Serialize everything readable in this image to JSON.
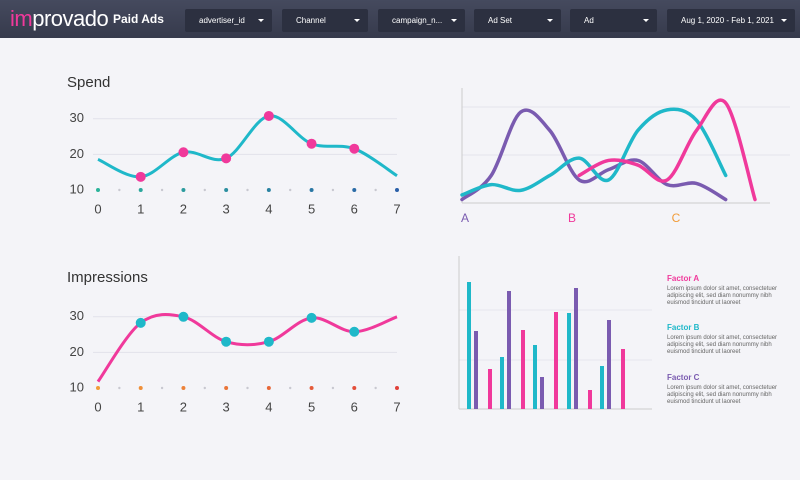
{
  "header": {
    "logo": [
      "im",
      "provado"
    ],
    "title": "Paid Ads",
    "filters": [
      "advertiser_id",
      "Channel",
      "campaign_n...",
      "Ad Set",
      "Ad",
      "Aug 1, 2020 - Feb 1, 2021"
    ]
  },
  "chart_data": [
    {
      "type": "line",
      "title": "Spend",
      "x": [
        0,
        1,
        2,
        3,
        4,
        5,
        6,
        7
      ],
      "xlim": [
        0,
        7
      ],
      "xticks": [
        0,
        1,
        2,
        3,
        4,
        5,
        6,
        7
      ],
      "ylim": [
        10,
        35
      ],
      "yticks": [
        10,
        20,
        30
      ],
      "grid": true,
      "marker_color": "#f0399b",
      "series": [
        {
          "color": "#1fb8c9",
          "values": [
            18.6,
            13.7,
            20.6,
            18.9,
            30.8,
            23,
            21.6,
            14
          ]
        }
      ]
    },
    {
      "type": "curves",
      "x": [
        0,
        1,
        2,
        3,
        4,
        5,
        6,
        7,
        8,
        9,
        10
      ],
      "xlim": [
        0,
        10
      ],
      "ylim": [
        0,
        100
      ],
      "labels": [
        "A",
        "B",
        "C"
      ],
      "label_colors": [
        "#7a5bb0",
        "#f0399b",
        "#f29c38"
      ],
      "series": [
        {
          "color": "#7a5bb0",
          "values": [
            3,
            24,
            79,
            63,
            20,
            29,
            37,
            16,
            17,
            3,
            null
          ]
        },
        {
          "color": "#1fb8c9",
          "values": [
            7,
            16,
            11,
            24,
            39,
            20,
            63,
            81,
            72,
            24,
            null
          ]
        },
        {
          "color": "#f0399b",
          "values": [
            null,
            null,
            null,
            null,
            24,
            37,
            33,
            20,
            63,
            87,
            3
          ]
        }
      ]
    },
    {
      "type": "line",
      "title": "Impressions",
      "x": [
        0,
        1,
        2,
        3,
        4,
        5,
        6,
        7
      ],
      "xlim": [
        0,
        7
      ],
      "xticks": [
        0,
        1,
        2,
        3,
        4,
        5,
        6,
        7
      ],
      "ylim": [
        10,
        35
      ],
      "yticks": [
        10,
        20,
        30
      ],
      "grid": true,
      "marker_color": "#1fb8c9",
      "series": [
        {
          "color": "#f0399b",
          "values": [
            11.8,
            28.3,
            30,
            23,
            23,
            29.7,
            25.8,
            30
          ]
        }
      ]
    },
    {
      "type": "bar",
      "categories": [
        null,
        null,
        null,
        null,
        null
      ],
      "ylim": [
        0,
        150
      ],
      "series": [
        {
          "name": "Factor A",
          "color": "#f0399b",
          "values": [
            40,
            79,
            97,
            19,
            60
          ],
          "description": "Lorem ipsum dolor sit amet, consectetuer adipiscing elit, sed diam nonummy nibh euismod tincidunt ut laoreet"
        },
        {
          "name": "Factor B",
          "color": "#1fb8c9",
          "values": [
            127,
            52,
            64,
            96,
            43
          ],
          "description": "Lorem ipsum dolor sit amet, consectetuer adipiscing elit, sed diam nonummy nibh euismod tincidunt ut laoreet"
        },
        {
          "name": "Factor C",
          "color": "#7a5bb0",
          "values": [
            78,
            118,
            32,
            121,
            89
          ],
          "description": "Lorem ipsum dolor sit amet, consectetuer adipiscing elit, sed diam nonummy nibh euismod tincidunt ut laoreet"
        }
      ]
    }
  ]
}
